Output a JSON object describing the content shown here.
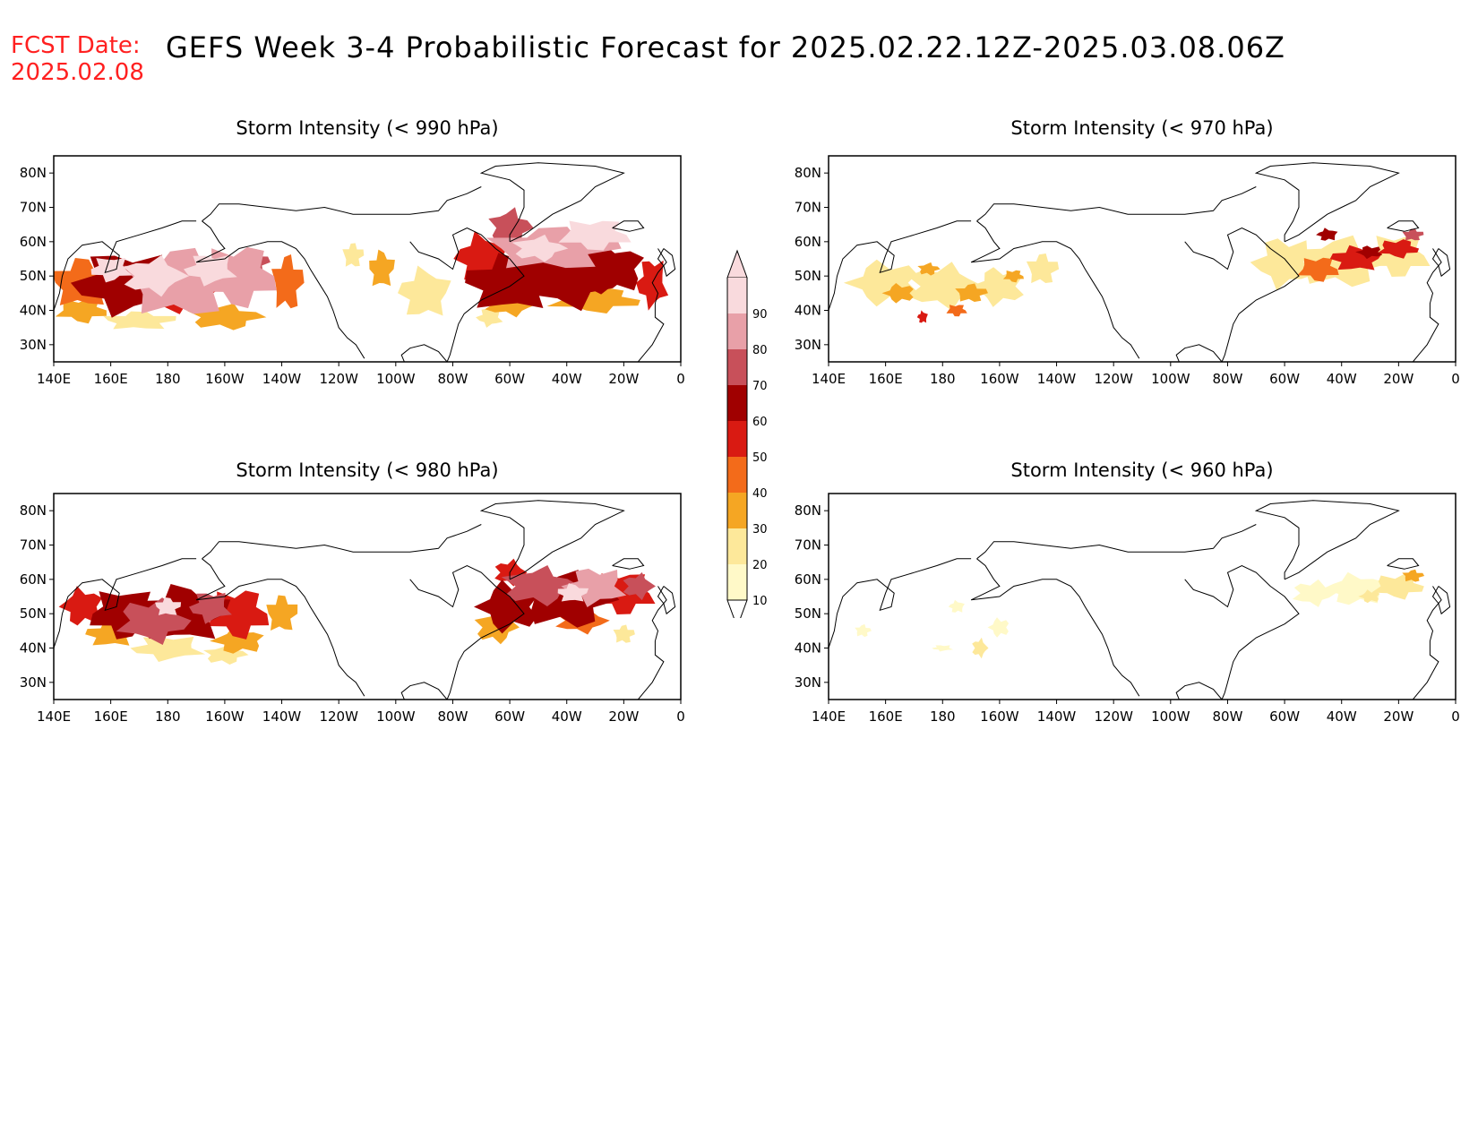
{
  "header": {
    "fcst_label": "FCST Date:",
    "fcst_date": "2025.02.08",
    "title": "GEFS Week 3-4 Probabilistic Forecast for 2025.02.22.12Z-2025.03.08.06Z"
  },
  "axes": {
    "lat_labels": [
      "80N",
      "70N",
      "60N",
      "50N",
      "40N",
      "30N"
    ],
    "lat_values": [
      80,
      70,
      60,
      50,
      40,
      30
    ],
    "lon_labels": [
      "140E",
      "160E",
      "180",
      "160W",
      "140W",
      "120W",
      "100W",
      "80W",
      "60W",
      "40W",
      "20W",
      "0"
    ],
    "lon_range": [
      "140E",
      "0"
    ],
    "lat_range": [
      "25N",
      "85N"
    ]
  },
  "colorbar": {
    "levels": [
      "10",
      "20",
      "30",
      "40",
      "50",
      "60",
      "70",
      "80",
      "90"
    ],
    "colors": [
      "#fff9c8",
      "#fde89a",
      "#f5a623",
      "#f36b1a",
      "#d91a12",
      "#a00000",
      "#c8505a",
      "#e8a0a8",
      "#f9dadd"
    ]
  },
  "panels": [
    {
      "title": "Storm Intensity (< 990 hPa)",
      "pos": "top-left"
    },
    {
      "title": "Storm Intensity (< 970 hPa)",
      "pos": "top-right"
    },
    {
      "title": "Storm Intensity (< 980 hPa)",
      "pos": "bottom-left"
    },
    {
      "title": "Storm Intensity (< 960 hPa)",
      "pos": "bottom-right"
    }
  ]
}
